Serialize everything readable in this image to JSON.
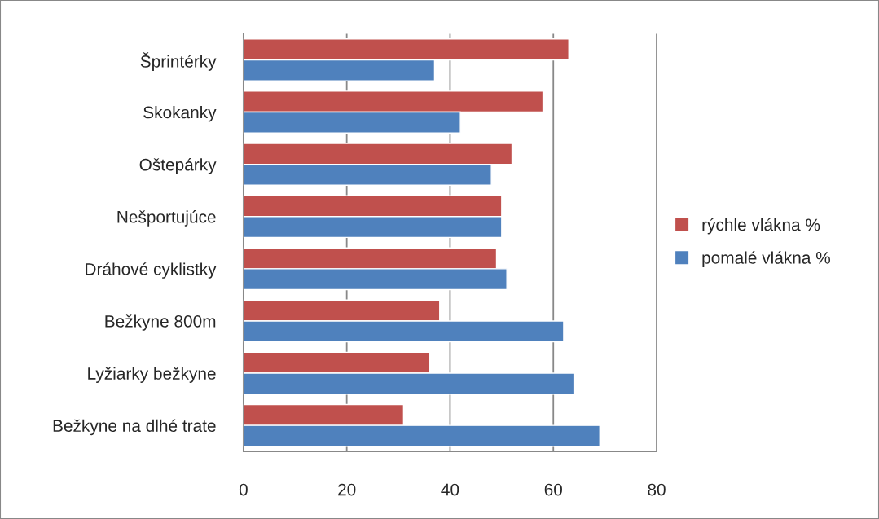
{
  "chart_data": {
    "type": "bar",
    "orientation": "horizontal",
    "categories": [
      "Šprintérky",
      "Skokanky",
      "Oštepárky",
      "Nešportujúce",
      "Dráhové cyklistky",
      "Bežkyne 800m",
      "Lyžiarky bežkyne",
      "Bežkyne na dlhé trate"
    ],
    "series": [
      {
        "name": "rýchle vlákna %",
        "color": "#c0504d",
        "values": [
          63,
          58,
          52,
          50,
          49,
          38,
          36,
          31
        ]
      },
      {
        "name": "pomalé vlákna %",
        "color": "#4f81bd",
        "values": [
          37,
          42,
          48,
          50,
          51,
          62,
          64,
          69
        ]
      }
    ],
    "xlim": [
      0,
      80
    ],
    "xticks": [
      0,
      20,
      40,
      60,
      80
    ],
    "grid": "x",
    "legend": "right"
  }
}
